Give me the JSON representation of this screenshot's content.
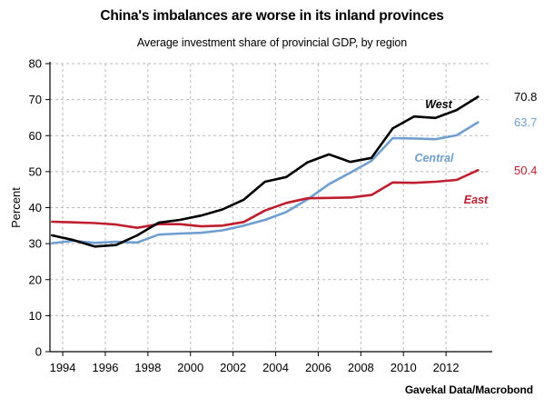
{
  "chart_data": {
    "type": "line",
    "title": "China's imbalances are worse in its inland provinces",
    "subtitle": "Average investment share of provincial GDP, by region",
    "ylabel": "Percent",
    "xlabel": "",
    "source": "Gavekal Data/Macrobond",
    "xlim": [
      1993.4,
      2014.0
    ],
    "ylim": [
      0,
      80
    ],
    "yticks": [
      0,
      10,
      20,
      30,
      40,
      50,
      60,
      70,
      80
    ],
    "xticks": [
      1994,
      1996,
      1998,
      2000,
      2002,
      2004,
      2006,
      2008,
      2010,
      2012
    ],
    "grid": true,
    "x": [
      1993.5,
      1994.5,
      1995.5,
      1996.5,
      1997.5,
      1998.5,
      1999.5,
      2000.5,
      2001.5,
      2002.5,
      2003.5,
      2004.5,
      2005.5,
      2006.5,
      2007.5,
      2008.5,
      2009.5,
      2010.5,
      2011.5,
      2012.5,
      2013.5
    ],
    "series": [
      {
        "name": "West",
        "color": "#000000",
        "values": [
          32.3,
          31.0,
          29.2,
          29.6,
          32.3,
          35.8,
          36.6,
          37.8,
          39.5,
          42.2,
          47.2,
          48.5,
          52.6,
          54.8,
          52.7,
          53.8,
          62.0,
          65.3,
          64.9,
          67.1,
          70.8
        ],
        "end_label": "70.8"
      },
      {
        "name": "Central",
        "color": "#6f9fd0",
        "values": [
          30.1,
          30.8,
          30.2,
          30.5,
          30.3,
          32.5,
          32.8,
          33.0,
          33.7,
          35.0,
          36.6,
          38.8,
          42.3,
          46.5,
          49.7,
          53.0,
          59.3,
          59.2,
          59.0,
          60.1,
          63.7
        ],
        "end_label": "63.7"
      },
      {
        "name": "East",
        "color": "#be1e2d",
        "values": [
          36.1,
          35.9,
          35.7,
          35.3,
          34.4,
          35.4,
          35.4,
          34.8,
          35.0,
          36.0,
          39.2,
          41.3,
          42.6,
          42.7,
          42.8,
          43.5,
          47.0,
          46.9,
          47.2,
          47.7,
          50.4
        ],
        "end_label": "50.4"
      }
    ]
  }
}
